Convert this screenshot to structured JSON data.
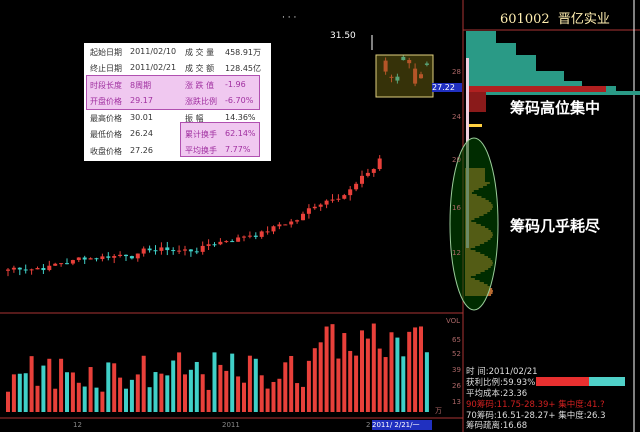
{
  "header": {
    "code": "601002",
    "name": "晋亿实业"
  },
  "info": {
    "start_date_label": "起始日期",
    "start_date": "2011/02/10",
    "volume_label": "成 交 量",
    "volume": "458.91万",
    "end_date_label": "终止日期",
    "end_date": "2011/02/21",
    "amount_label": "成 交 额",
    "amount": "128.45亿",
    "period_label": "时段长度",
    "period": "8周期",
    "change_label": "涨 跌 值",
    "change": "-1.96",
    "open_label": "开盘价格",
    "open": "29.17",
    "change_pct_label": "涨跌比例",
    "change_pct": "-6.70%",
    "high_label": "最高价格",
    "high": "30.01",
    "amplitude_label": "振    幅",
    "amplitude": "14.36%",
    "low_label": "最低价格",
    "low": "26.24",
    "cum_turnover_label": "累计换手",
    "cum_turnover": "62.14%",
    "close_label": "收盘价格",
    "close": "27.26",
    "avg_turnover_label": "平均换手",
    "avg_turnover": "7.77%"
  },
  "chart": {
    "peak_label": "31.50",
    "current_price": "27.22",
    "dots": "·  ·  ·",
    "vol_label": "VOL",
    "vol_unit": "万",
    "price_ticks": [
      "28",
      "24",
      "20",
      "16",
      "12"
    ],
    "vol_ticks": [
      "65",
      "52",
      "39",
      "26",
      "13"
    ],
    "x_labels": [
      "12",
      "2011",
      "2"
    ],
    "cursor_date": "2011/ 2/21/一"
  },
  "annotations": {
    "high_concentration": "筹码高位集中",
    "chips_exhausted": "筹码几乎耗尽"
  },
  "chip_stats": {
    "date": "时        间:2011/02/21",
    "profit_ratio": "获利比例:59.93%",
    "profit_fraction": 0.5993,
    "avg_cost": "平均成本:23.36",
    "chip90": "90筹码:11.75-28.39+ 集中度:41.?",
    "chip70": "70筹码:16.51-28.27+ 集中度:26.3",
    "distance": "筹码疏离:16.68"
  },
  "colors": {
    "up": "#e8403a",
    "down": "#40d0c8",
    "profit": "#e83030",
    "loss": "#50d0c8"
  }
}
